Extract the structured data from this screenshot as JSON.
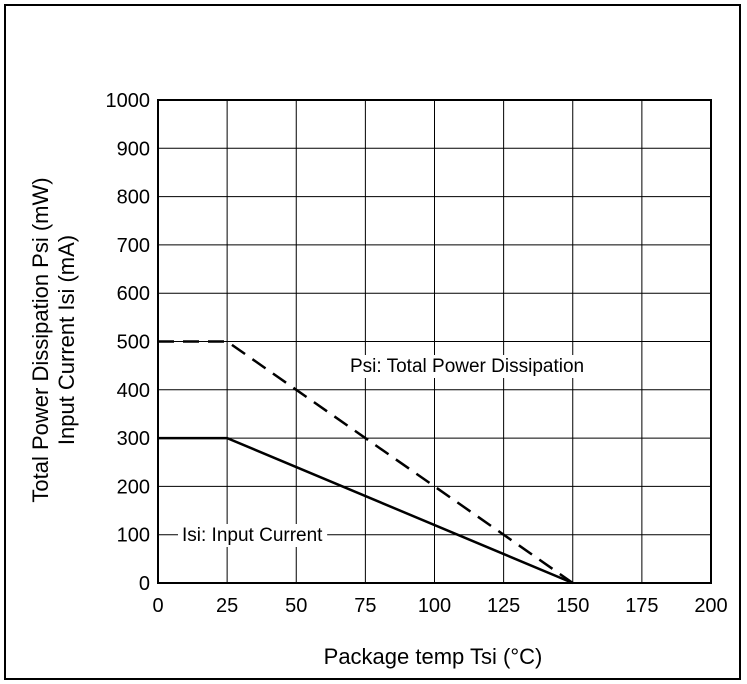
{
  "chart_data": {
    "type": "line",
    "xlabel": "Package temp Tsi (°C)",
    "ylabel_lines": [
      "Total Power Dissipation  Psi (mW)",
      "Input Current  Isi (mA)"
    ],
    "xlim": [
      0,
      200
    ],
    "ylim": [
      0,
      1000
    ],
    "xticks": [
      0,
      25,
      50,
      75,
      100,
      125,
      150,
      175,
      200
    ],
    "yticks": [
      0,
      100,
      200,
      300,
      400,
      500,
      600,
      700,
      800,
      900,
      1000
    ],
    "grid": true,
    "series": [
      {
        "name": "Psi: Total Power Dissipation",
        "style": "dashed",
        "color": "#000000",
        "x": [
          0,
          25,
          150
        ],
        "y": [
          500,
          500,
          0
        ]
      },
      {
        "name": "Isi: Input Current",
        "style": "solid",
        "color": "#000000",
        "x": [
          0,
          25,
          150
        ],
        "y": [
          300,
          300,
          0
        ]
      }
    ],
    "annotations": [
      {
        "text": "Psi: Total Power Dissipation",
        "series": 0
      },
      {
        "text": "Isi: Input Current",
        "series": 1
      }
    ]
  }
}
